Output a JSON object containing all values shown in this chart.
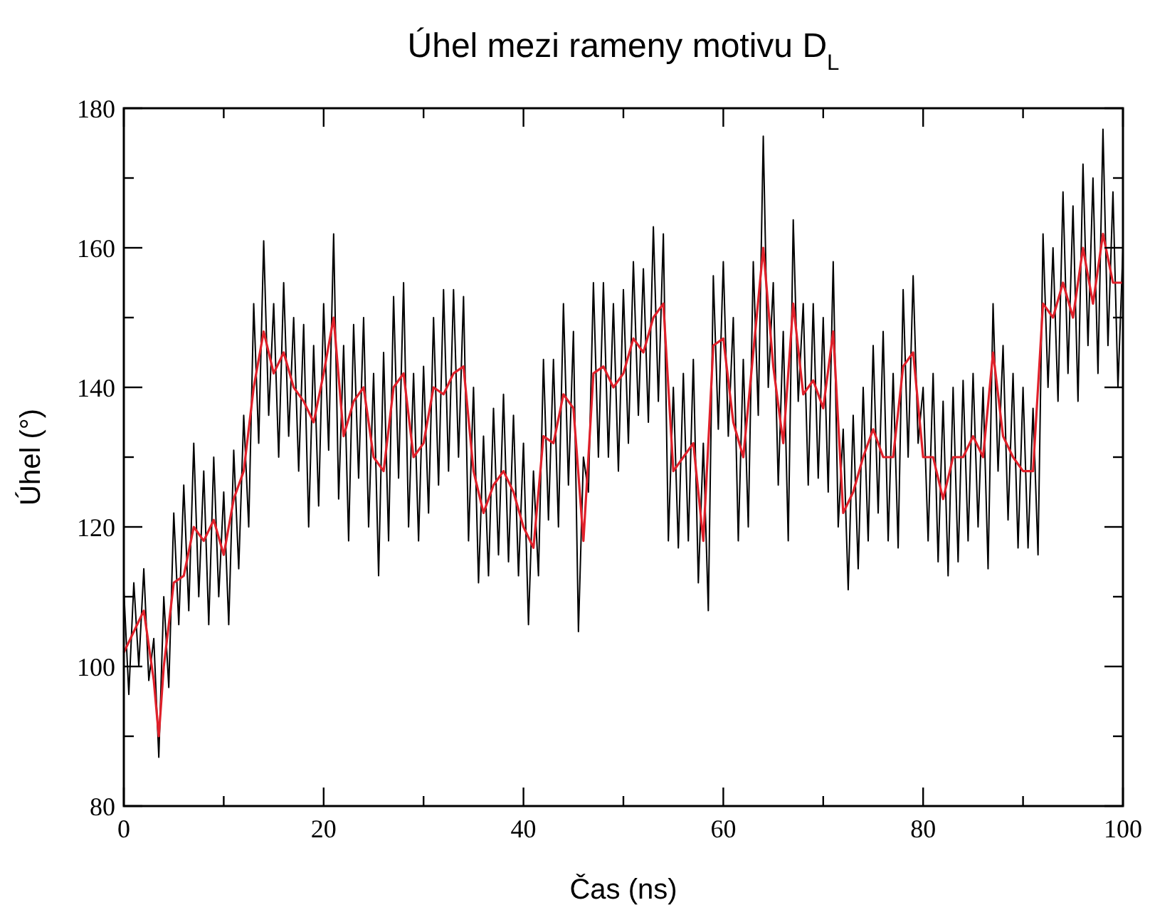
{
  "chart_data": {
    "type": "line",
    "title": "Úhel mezi rameny motivu D$_{L}$",
    "xlabel": "Čas (ns)",
    "ylabel": "Úhel (°)",
    "xlim": [
      0,
      100
    ],
    "ylim": [
      80,
      180
    ],
    "xticks": [
      0,
      {
        "value": 10,
        "label": null
      },
      20,
      {
        "value": 30,
        "label": null
      },
      40,
      {
        "value": 50,
        "label": null
      },
      60,
      {
        "value": 70,
        "label": null
      },
      80,
      {
        "value": 90,
        "label": null
      },
      100
    ],
    "yticks": [
      80,
      {
        "value": 90,
        "label": null
      },
      100,
      {
        "value": 110,
        "label": null
      },
      120,
      {
        "value": 130,
        "label": null
      },
      140,
      {
        "value": 150,
        "label": null
      },
      160,
      {
        "value": 170,
        "label": null
      },
      180
    ],
    "grid": false,
    "marker": "none",
    "line_style": "solid",
    "series": [
      {
        "color": "#000000",
        "x": [
          0,
          0.5,
          1,
          1.5,
          2,
          2.5,
          3,
          3.5,
          4,
          4.5,
          5,
          5.5,
          6,
          6.5,
          7,
          7.5,
          8,
          8.5,
          9,
          9.5,
          10,
          10.5,
          11,
          11.5,
          12,
          12.5,
          13,
          13.5,
          14,
          14.5,
          15,
          15.5,
          16,
          16.5,
          17,
          17.5,
          18,
          18.5,
          19,
          19.5,
          20,
          20.5,
          21,
          21.5,
          22,
          22.5,
          23,
          23.5,
          24,
          24.5,
          25,
          25.5,
          26,
          26.5,
          27,
          27.5,
          28,
          28.5,
          29,
          29.5,
          30,
          30.5,
          31,
          31.5,
          32,
          32.5,
          33,
          33.5,
          34,
          34.5,
          35,
          35.5,
          36,
          36.5,
          37,
          37.5,
          38,
          38.5,
          39,
          39.5,
          40,
          40.5,
          41,
          41.5,
          42,
          42.5,
          43,
          43.5,
          44,
          44.5,
          45,
          45.5,
          46,
          46.5,
          47,
          47.5,
          48,
          48.5,
          49,
          49.5,
          50,
          50.5,
          51,
          51.5,
          52,
          52.5,
          53,
          53.5,
          54,
          54.5,
          55,
          55.5,
          56,
          56.5,
          57,
          57.5,
          58,
          58.5,
          59,
          59.5,
          60,
          60.5,
          61,
          61.5,
          62,
          62.5,
          63,
          63.5,
          64,
          64.5,
          65,
          65.5,
          66,
          66.5,
          67,
          67.5,
          68,
          68.5,
          69,
          69.5,
          70,
          70.5,
          71,
          71.5,
          72,
          72.5,
          73,
          73.5,
          74,
          74.5,
          75,
          75.5,
          76,
          76.5,
          77,
          77.5,
          78,
          78.5,
          79,
          79.5,
          80,
          80.5,
          81,
          81.5,
          82,
          82.5,
          83,
          83.5,
          84,
          84.5,
          85,
          85.5,
          86,
          86.5,
          87,
          87.5,
          88,
          88.5,
          89,
          89.5,
          90,
          90.5,
          91,
          91.5,
          92,
          92.5,
          93,
          93.5,
          94,
          94.5,
          95,
          95.5,
          96,
          96.5,
          97,
          97.5,
          98,
          98.5,
          99,
          99.5,
          100
        ],
        "values": [
          111,
          96,
          112,
          100,
          114,
          98,
          104,
          87,
          110,
          97,
          122,
          106,
          126,
          108,
          132,
          110,
          128,
          106,
          130,
          110,
          125,
          106,
          131,
          114,
          136,
          120,
          152,
          132,
          161,
          136,
          152,
          130,
          155,
          133,
          150,
          128,
          149,
          120,
          146,
          123,
          152,
          131,
          162,
          124,
          146,
          118,
          149,
          127,
          150,
          120,
          142,
          113,
          145,
          118,
          153,
          127,
          155,
          120,
          142,
          118,
          143,
          122,
          150,
          126,
          154,
          128,
          154,
          130,
          153,
          118,
          140,
          112,
          133,
          113,
          137,
          116,
          139,
          115,
          136,
          113,
          132,
          106,
          128,
          113,
          144,
          121,
          144,
          120,
          152,
          126,
          148,
          105,
          130,
          125,
          155,
          130,
          155,
          130,
          152,
          128,
          154,
          132,
          158,
          136,
          157,
          135,
          163,
          138,
          162,
          118,
          140,
          117,
          142,
          118,
          144,
          112,
          132,
          108,
          156,
          134,
          158,
          133,
          150,
          118,
          144,
          120,
          158,
          136,
          176,
          140,
          155,
          126,
          148,
          118,
          164,
          138,
          152,
          126,
          152,
          127,
          150,
          125,
          158,
          120,
          134,
          111,
          136,
          114,
          140,
          118,
          146,
          122,
          148,
          118,
          142,
          117,
          154,
          130,
          156,
          132,
          140,
          118,
          142,
          115,
          138,
          113,
          140,
          115,
          141,
          118,
          142,
          120,
          140,
          114,
          152,
          128,
          146,
          121,
          142,
          117,
          140,
          117,
          137,
          116,
          162,
          140,
          160,
          138,
          168,
          142,
          166,
          138,
          172,
          146,
          170,
          142,
          177,
          146,
          168,
          140,
          160
        ]
      },
      {
        "color": "#e0202a",
        "x": [
          0,
          1,
          2,
          3,
          3.5,
          4,
          5,
          6,
          7,
          8,
          9,
          10,
          11,
          12,
          13,
          14,
          15,
          16,
          17,
          18,
          19,
          20,
          21,
          22,
          23,
          24,
          25,
          26,
          27,
          28,
          29,
          30,
          31,
          32,
          33,
          34,
          35,
          36,
          37,
          38,
          39,
          40,
          41,
          42,
          43,
          44,
          45,
          46,
          47,
          48,
          49,
          50,
          51,
          52,
          53,
          54,
          55,
          56,
          57,
          58,
          59,
          60,
          61,
          62,
          63,
          64,
          65,
          66,
          67,
          68,
          69,
          70,
          71,
          72,
          73,
          74,
          75,
          76,
          77,
          78,
          79,
          80,
          81,
          82,
          83,
          84,
          85,
          86,
          87,
          88,
          89,
          90,
          91,
          92,
          93,
          94,
          95,
          96,
          97,
          98,
          99,
          100
        ],
        "values": [
          102,
          105,
          108,
          98,
          90,
          100,
          112,
          113,
          120,
          118,
          121,
          116,
          124,
          128,
          140,
          148,
          142,
          145,
          140,
          138,
          135,
          142,
          150,
          133,
          138,
          140,
          130,
          128,
          140,
          142,
          130,
          132,
          140,
          139,
          142,
          143,
          128,
          122,
          126,
          128,
          125,
          120,
          117,
          133,
          132,
          139,
          137,
          118,
          142,
          143,
          140,
          142,
          147,
          145,
          150,
          152,
          128,
          130,
          132,
          118,
          146,
          147,
          135,
          130,
          145,
          160,
          143,
          132,
          152,
          139,
          141,
          137,
          148,
          122,
          125,
          130,
          134,
          130,
          130,
          143,
          145,
          130,
          130,
          124,
          130,
          130,
          133,
          130,
          145,
          133,
          130,
          128,
          128,
          152,
          150,
          155,
          150,
          160,
          152,
          162,
          155,
          155
        ]
      }
    ]
  }
}
